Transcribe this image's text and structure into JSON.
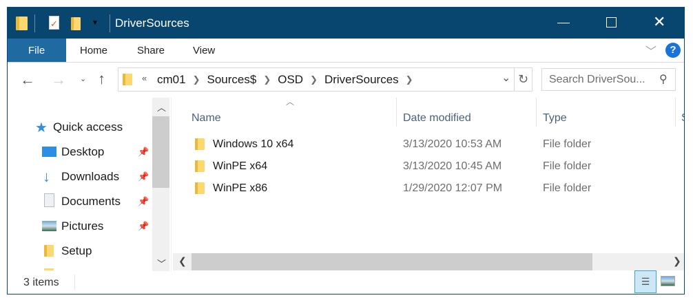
{
  "window": {
    "title": "DriverSources",
    "accent": "#08466f"
  },
  "ribbon": {
    "tabs": [
      {
        "label": "File"
      },
      {
        "label": "Home"
      },
      {
        "label": "Share"
      },
      {
        "label": "View"
      }
    ],
    "help": "?"
  },
  "address": {
    "overflow": "«",
    "crumbs": [
      "cm01",
      "Sources$",
      "OSD",
      "DriverSources"
    ]
  },
  "search": {
    "placeholder": "Search DriverSou..."
  },
  "nav": {
    "quick_access": "Quick access",
    "items": [
      {
        "label": "Desktop",
        "icon": "desktop-icon",
        "pinned": true
      },
      {
        "label": "Downloads",
        "icon": "downloads-icon",
        "pinned": true
      },
      {
        "label": "Documents",
        "icon": "documents-icon",
        "pinned": true
      },
      {
        "label": "Pictures",
        "icon": "pictures-icon",
        "pinned": true
      },
      {
        "label": "Setup",
        "icon": "folder-icon",
        "pinned": false
      }
    ]
  },
  "columns": [
    "Name",
    "Date modified",
    "Type",
    "S"
  ],
  "files": [
    {
      "name": "Windows 10 x64",
      "date": "3/13/2020 10:53 AM",
      "type": "File folder"
    },
    {
      "name": "WinPE x64",
      "date": "3/13/2020 10:45 AM",
      "type": "File folder"
    },
    {
      "name": "WinPE x86",
      "date": "1/29/2020 12:07 PM",
      "type": "File folder"
    }
  ],
  "status": {
    "count": "3 items"
  }
}
